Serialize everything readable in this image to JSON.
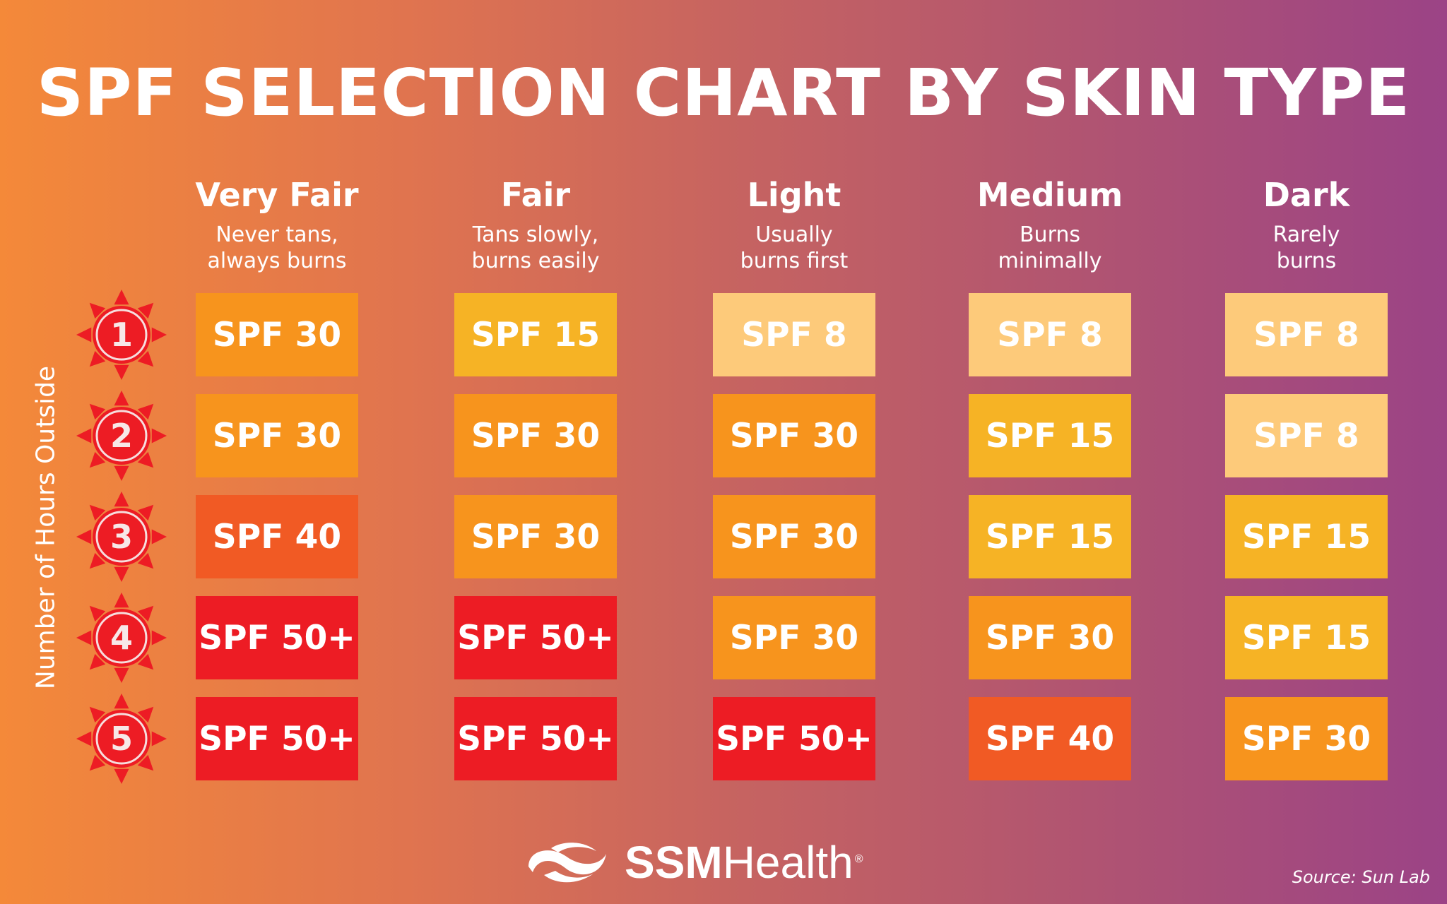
{
  "title": "SPF SELECTION CHART BY SKIN TYPE",
  "chart_data": {
    "type": "table",
    "title": "SPF SELECTION CHART BY SKIN TYPE",
    "ylabel": "Number of Hours Outside",
    "rows": [
      "1",
      "2",
      "3",
      "4",
      "5"
    ],
    "columns": [
      {
        "name": "Very Fair",
        "desc": "Never tans,\nalways burns"
      },
      {
        "name": "Fair",
        "desc": "Tans slowly,\nburns easily"
      },
      {
        "name": "Light",
        "desc": "Usually\nburns first"
      },
      {
        "name": "Medium",
        "desc": "Burns\nminimally"
      },
      {
        "name": "Dark",
        "desc": "Rarely\nburns"
      }
    ],
    "values": [
      [
        "SPF 30",
        "SPF 15",
        "SPF 8",
        "SPF 8",
        "SPF 8"
      ],
      [
        "SPF 30",
        "SPF 30",
        "SPF 30",
        "SPF 15",
        "SPF 8"
      ],
      [
        "SPF 40",
        "SPF 30",
        "SPF 30",
        "SPF 15",
        "SPF 15"
      ],
      [
        "SPF 50+",
        "SPF 50+",
        "SPF 30",
        "SPF 30",
        "SPF 15"
      ],
      [
        "SPF 50+",
        "SPF 50+",
        "SPF 50+",
        "SPF 40",
        "SPF 30"
      ]
    ],
    "colors": {
      "SPF 8": "#fdca7a",
      "SPF 15": "#f6b325",
      "SPF 30": "#f7941d",
      "SPF 40": "#f15a24",
      "SPF 50+": "#ed1c24"
    },
    "sun_color": "#ed1c24"
  },
  "logo": {
    "bold": "SSM",
    "light": "Health",
    "reg": "®"
  },
  "source": "Source: Sun Lab"
}
